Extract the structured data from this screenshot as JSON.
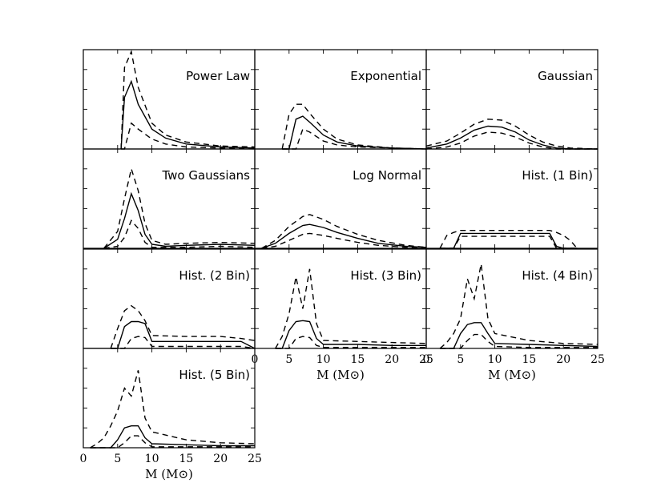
{
  "chart_data": [
    {
      "type": "line",
      "title": "Power Law",
      "xlim": [
        0,
        25
      ],
      "ylim": [
        0,
        1
      ],
      "xlabel": "",
      "x": [
        5.5,
        6,
        7,
        8,
        10,
        12,
        15,
        20,
        25
      ],
      "series": [
        {
          "name": "upper",
          "values": [
            0,
            0.82,
            0.98,
            0.62,
            0.26,
            0.14,
            0.07,
            0.03,
            0.02
          ]
        },
        {
          "name": "median",
          "values": [
            0,
            0.52,
            0.68,
            0.45,
            0.2,
            0.11,
            0.05,
            0.02,
            0.01
          ]
        },
        {
          "name": "lower",
          "values": [
            0,
            0,
            0.26,
            0.2,
            0.1,
            0.05,
            0.02,
            0.01,
            0
          ]
        }
      ]
    },
    {
      "type": "line",
      "title": "Exponential",
      "xlim": [
        0,
        25
      ],
      "ylim": [
        0,
        1
      ],
      "xlabel": "",
      "x": [
        4,
        5,
        6,
        7,
        8,
        10,
        12,
        15,
        20,
        25
      ],
      "series": [
        {
          "name": "upper",
          "values": [
            0,
            0.35,
            0.45,
            0.45,
            0.36,
            0.2,
            0.1,
            0.04,
            0.01,
            0
          ]
        },
        {
          "name": "median",
          "values": [
            0,
            0,
            0.3,
            0.33,
            0.27,
            0.14,
            0.07,
            0.03,
            0.01,
            0
          ]
        },
        {
          "name": "lower",
          "values": [
            0,
            0,
            0,
            0.2,
            0.17,
            0.08,
            0.04,
            0.02,
            0.01,
            0
          ]
        }
      ]
    },
    {
      "type": "line",
      "title": "Gaussian",
      "xlim": [
        0,
        25
      ],
      "ylim": [
        0,
        1
      ],
      "xlabel": "",
      "x": [
        0,
        3,
        5,
        7,
        9,
        11,
        13,
        15,
        17,
        19,
        21,
        25
      ],
      "series": [
        {
          "name": "upper",
          "values": [
            0.03,
            0.08,
            0.16,
            0.25,
            0.3,
            0.29,
            0.23,
            0.14,
            0.07,
            0.03,
            0.01,
            0
          ]
        },
        {
          "name": "median",
          "values": [
            0.01,
            0.05,
            0.11,
            0.19,
            0.23,
            0.22,
            0.17,
            0.09,
            0.04,
            0.01,
            0,
            0
          ]
        },
        {
          "name": "lower",
          "values": [
            0,
            0.02,
            0.06,
            0.13,
            0.17,
            0.16,
            0.12,
            0.06,
            0.02,
            0,
            0,
            0
          ]
        }
      ]
    },
    {
      "type": "line",
      "title": "Two Gaussians",
      "xlim": [
        0,
        25
      ],
      "ylim": [
        0,
        1
      ],
      "xlabel": "",
      "x": [
        3,
        5,
        6,
        7,
        8,
        9,
        10,
        12,
        15,
        20,
        25
      ],
      "series": [
        {
          "name": "upper",
          "values": [
            0,
            0.17,
            0.5,
            0.8,
            0.58,
            0.25,
            0.08,
            0.04,
            0.05,
            0.06,
            0.05
          ]
        },
        {
          "name": "median",
          "values": [
            0,
            0.09,
            0.3,
            0.55,
            0.38,
            0.14,
            0.04,
            0.02,
            0.03,
            0.04,
            0.03
          ]
        },
        {
          "name": "lower",
          "values": [
            0,
            0.02,
            0.11,
            0.28,
            0.2,
            0.06,
            0.01,
            0.01,
            0.01,
            0.02,
            0.01
          ]
        }
      ]
    },
    {
      "type": "line",
      "title": "Log Normal",
      "xlim": [
        0,
        25
      ],
      "ylim": [
        0,
        1
      ],
      "xlabel": "",
      "x": [
        1,
        3,
        5,
        7,
        8,
        10,
        12,
        15,
        18,
        22,
        25
      ],
      "series": [
        {
          "name": "upper",
          "values": [
            0,
            0.08,
            0.22,
            0.32,
            0.34,
            0.29,
            0.22,
            0.14,
            0.08,
            0.03,
            0.01
          ]
        },
        {
          "name": "median",
          "values": [
            0,
            0.05,
            0.15,
            0.23,
            0.24,
            0.21,
            0.16,
            0.1,
            0.05,
            0.02,
            0.01
          ]
        },
        {
          "name": "lower",
          "values": [
            0,
            0.02,
            0.08,
            0.14,
            0.15,
            0.13,
            0.1,
            0.06,
            0.03,
            0.01,
            0
          ]
        }
      ]
    },
    {
      "type": "line",
      "title": "Hist. (1 Bin)",
      "xlim": [
        0,
        25
      ],
      "ylim": [
        0,
        1
      ],
      "xlabel": "",
      "x": [
        2,
        3,
        4,
        5,
        10,
        15,
        18,
        19,
        20,
        21,
        22
      ],
      "series": [
        {
          "name": "upper",
          "values": [
            0,
            0.13,
            0.16,
            0.18,
            0.18,
            0.18,
            0.18,
            0.16,
            0.13,
            0.08,
            0
          ]
        },
        {
          "name": "median",
          "values": [
            0,
            0,
            0,
            0.15,
            0.15,
            0.15,
            0.15,
            0.02,
            0,
            0,
            0
          ]
        },
        {
          "name": "lower",
          "values": [
            0,
            0,
            0,
            0.12,
            0.12,
            0.12,
            0.12,
            0,
            0,
            0,
            0
          ]
        }
      ]
    },
    {
      "type": "line",
      "title": "Hist. (2 Bin)",
      "xlim": [
        0,
        25
      ],
      "ylim": [
        0,
        1
      ],
      "xlabel": "",
      "x": [
        4,
        5,
        6,
        7,
        8,
        9,
        10,
        15,
        20,
        23,
        25
      ],
      "series": [
        {
          "name": "upper",
          "values": [
            0,
            0.2,
            0.38,
            0.43,
            0.38,
            0.28,
            0.13,
            0.12,
            0.12,
            0.1,
            0.08
          ]
        },
        {
          "name": "median",
          "values": [
            0,
            0,
            0.22,
            0.27,
            0.27,
            0.25,
            0.07,
            0.07,
            0.07,
            0.07,
            0
          ]
        },
        {
          "name": "lower",
          "values": [
            0,
            0,
            0,
            0.1,
            0.12,
            0.11,
            0.02,
            0.02,
            0.02,
            0.02,
            0
          ]
        }
      ]
    },
    {
      "type": "line",
      "title": "Hist. (3 Bin)",
      "xlim": [
        0,
        25
      ],
      "ylim": [
        0,
        1
      ],
      "xlabel": "M (M⊙)",
      "x": [
        3,
        4,
        5,
        6,
        7,
        8,
        9,
        10,
        15,
        20,
        25
      ],
      "series": [
        {
          "name": "upper",
          "values": [
            0,
            0.12,
            0.35,
            0.72,
            0.4,
            0.8,
            0.25,
            0.08,
            0.07,
            0.06,
            0.05
          ]
        },
        {
          "name": "median",
          "values": [
            0,
            0,
            0.18,
            0.27,
            0.28,
            0.27,
            0.1,
            0.04,
            0.04,
            0.03,
            0.03
          ]
        },
        {
          "name": "lower",
          "values": [
            0,
            0,
            0,
            0.1,
            0.12,
            0.11,
            0.03,
            0.01,
            0.01,
            0.01,
            0.01
          ]
        }
      ]
    },
    {
      "type": "line",
      "title": "Hist. (4 Bin)",
      "xlim": [
        0,
        25
      ],
      "ylim": [
        0,
        1
      ],
      "xlabel": "M (M⊙)",
      "x": [
        2,
        3,
        4,
        5,
        6,
        7,
        8,
        9,
        10,
        15,
        20,
        25
      ],
      "series": [
        {
          "name": "upper",
          "values": [
            0,
            0.06,
            0.15,
            0.3,
            0.7,
            0.5,
            0.85,
            0.3,
            0.15,
            0.08,
            0.05,
            0.04
          ]
        },
        {
          "name": "median",
          "values": [
            0,
            0,
            0,
            0.15,
            0.24,
            0.26,
            0.26,
            0.15,
            0.05,
            0.04,
            0.03,
            0.02
          ]
        },
        {
          "name": "lower",
          "values": [
            0,
            0,
            0,
            0,
            0.08,
            0.14,
            0.14,
            0.07,
            0.02,
            0.01,
            0.01,
            0.01
          ]
        }
      ]
    },
    {
      "type": "line",
      "title": "Hist. (5 Bin)",
      "xlim": [
        0,
        25
      ],
      "ylim": [
        0,
        1
      ],
      "xlabel": "M (M⊙)",
      "x": [
        1,
        2,
        3,
        4,
        5,
        6,
        7,
        8,
        9,
        10,
        15,
        20,
        25
      ],
      "series": [
        {
          "name": "upper",
          "values": [
            0,
            0.04,
            0.1,
            0.22,
            0.37,
            0.6,
            0.52,
            0.78,
            0.3,
            0.16,
            0.08,
            0.05,
            0.04
          ]
        },
        {
          "name": "median",
          "values": [
            0,
            0,
            0,
            0,
            0.08,
            0.2,
            0.22,
            0.22,
            0.1,
            0.04,
            0.03,
            0.02,
            0.02
          ]
        },
        {
          "name": "lower",
          "values": [
            0,
            0,
            0,
            0,
            0,
            0.05,
            0.12,
            0.12,
            0.05,
            0.01,
            0.01,
            0.01,
            0.01
          ]
        }
      ]
    }
  ],
  "axes": {
    "xticks": [
      "0",
      "5",
      "10",
      "15",
      "20",
      "25"
    ],
    "xtick_values": [
      0,
      5,
      10,
      15,
      20,
      25
    ],
    "xlabel": "M (M⊙)"
  }
}
